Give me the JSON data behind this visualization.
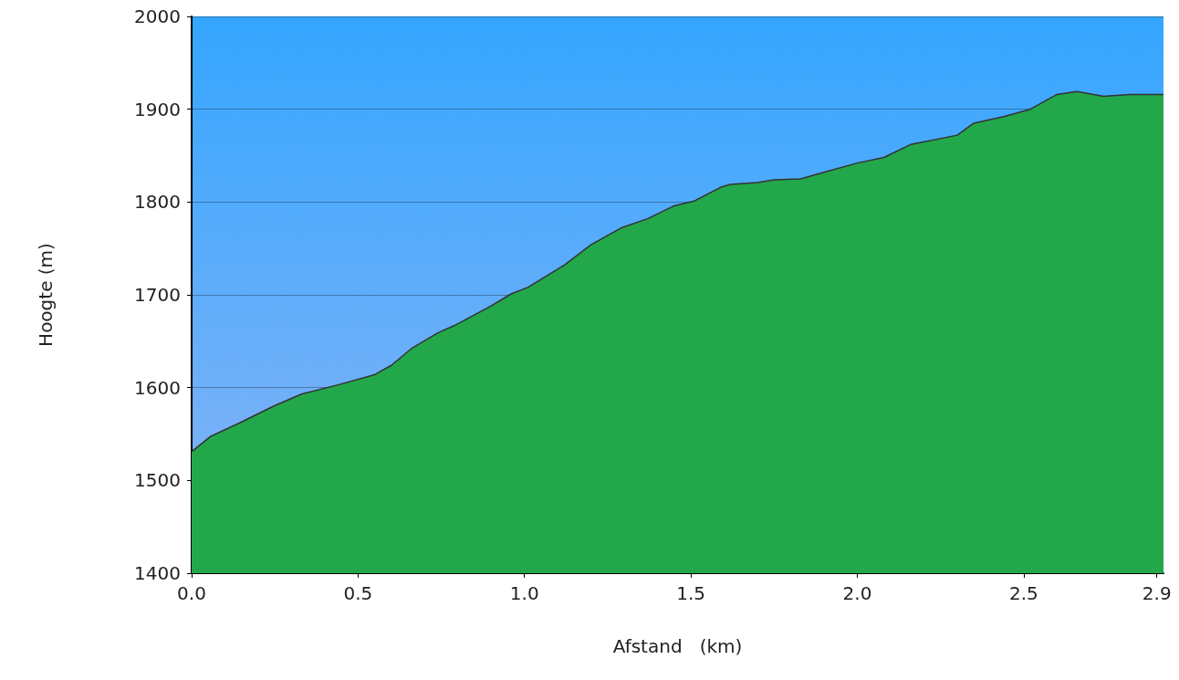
{
  "chart_data": {
    "type": "area",
    "xlabel": "Afstand   (km)",
    "ylabel": "Hoogte (m)",
    "x": [
      0,
      0.055,
      0.15,
      0.246,
      0.33,
      0.44,
      0.55,
      0.6,
      0.66,
      0.74,
      0.79,
      0.9,
      0.96,
      1.01,
      1.12,
      1.2,
      1.29,
      1.37,
      1.45,
      1.51,
      1.59,
      1.62,
      1.7,
      1.75,
      1.83,
      1.89,
      2.0,
      2.08,
      2.16,
      2.3,
      2.35,
      2.44,
      2.52,
      2.6,
      2.66,
      2.74,
      2.82,
      2.92
    ],
    "series": [
      {
        "color": "#22a84a",
        "values": [
          1531,
          1547,
          1563,
          1580,
          1593,
          1603,
          1614,
          1624,
          1642,
          1659,
          1667,
          1688,
          1701,
          1708,
          1732,
          1754,
          1772,
          1782,
          1796,
          1801,
          1816,
          1819,
          1821,
          1824,
          1825,
          1831,
          1842,
          1848,
          1862,
          1872,
          1885,
          1892,
          1900,
          1916,
          1919,
          1914,
          1916,
          1916
        ]
      }
    ],
    "xlim": [
      0,
      2.92
    ],
    "xticks": [
      {
        "value": 0,
        "label": "0.0"
      },
      {
        "value": 0.5,
        "label": "0.5"
      },
      {
        "value": 1,
        "label": "1.0"
      },
      {
        "value": 1.5,
        "label": "1.5"
      },
      {
        "value": 2,
        "label": "2.0"
      },
      {
        "value": 2.5,
        "label": "2.5"
      },
      {
        "value": 2.9,
        "label": "2.9"
      }
    ],
    "ylim": [
      1400,
      2000
    ],
    "yticks": [
      1400,
      1500,
      1600,
      1700,
      1800,
      1900,
      2000
    ],
    "grid": "y",
    "marker": "none",
    "line_style": "solid"
  }
}
